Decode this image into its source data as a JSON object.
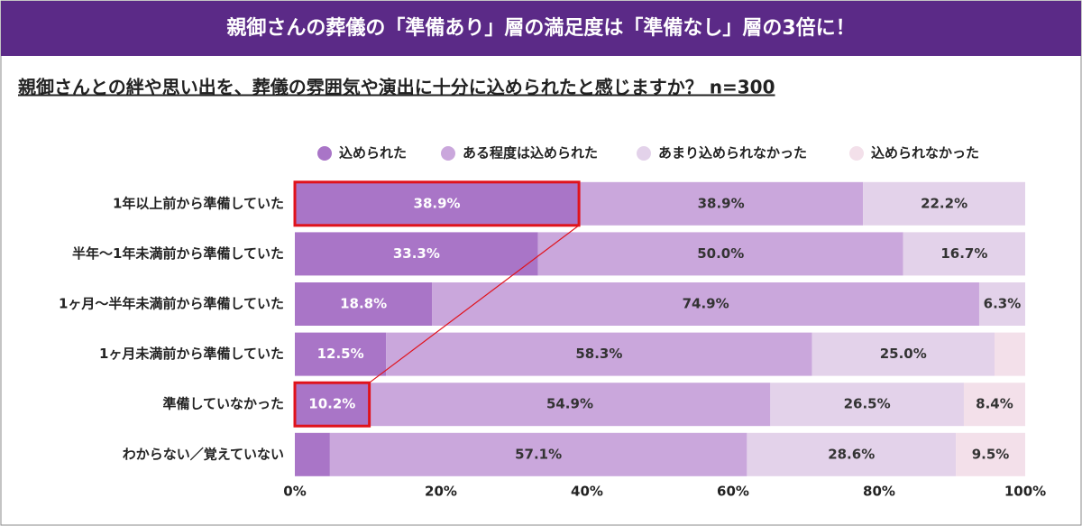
{
  "header": {
    "title": "親御さんの葬儀の「準備あり」層の満足度は「準備なし」層の3倍に！"
  },
  "chart_data": {
    "type": "stacked-barh",
    "title": "親御さんとの絆や思い出を、葬儀の雰囲気や演出に十分に込められたと感じますか？ n=300",
    "categories": [
      "1年以上前から準備していた",
      "半年〜1年未満前から準備していた",
      "1ヶ月〜半年未満前から準備していた",
      "1ヶ月未満前から準備していた",
      "準備していなかった",
      "わからない／覚えていない"
    ],
    "series": [
      {
        "name": "込められた",
        "color": "#a975c7",
        "values": [
          38.9,
          33.3,
          18.8,
          12.5,
          10.2,
          4.8
        ],
        "value_labels": [
          "38.9%",
          "33.3%",
          "18.8%",
          "12.5%",
          "10.2%",
          null
        ]
      },
      {
        "name": "ある程度は込められた",
        "color": "#caa7dc",
        "values": [
          38.9,
          50.0,
          74.9,
          58.3,
          54.9,
          57.1
        ],
        "value_labels": [
          "38.9%",
          "50.0%",
          "74.9%",
          "58.3%",
          "54.9%",
          "57.1%"
        ]
      },
      {
        "name": "あまり込められなかった",
        "color": "#e3d2ea",
        "values": [
          22.2,
          16.7,
          6.3,
          25.0,
          26.5,
          28.6
        ],
        "value_labels": [
          "22.2%",
          "16.7%",
          "6.3%",
          "25.0%",
          "26.5%",
          "28.6%"
        ]
      },
      {
        "name": "込められなかった",
        "color": "#f3e0ea",
        "values": [
          0,
          0,
          0,
          4.2,
          8.4,
          9.5
        ],
        "value_labels": [
          null,
          null,
          null,
          null,
          "8.4%",
          "9.5%"
        ]
      }
    ],
    "xlim": [
      0,
      100
    ],
    "xticks": [
      {
        "value": 0,
        "label": "0%"
      },
      {
        "value": 20,
        "label": "20%"
      },
      {
        "value": 40,
        "label": "40%"
      },
      {
        "value": 60,
        "label": "60%"
      },
      {
        "value": 80,
        "label": "80%"
      },
      {
        "value": 100,
        "label": "100%"
      }
    ],
    "legend": "top"
  }
}
